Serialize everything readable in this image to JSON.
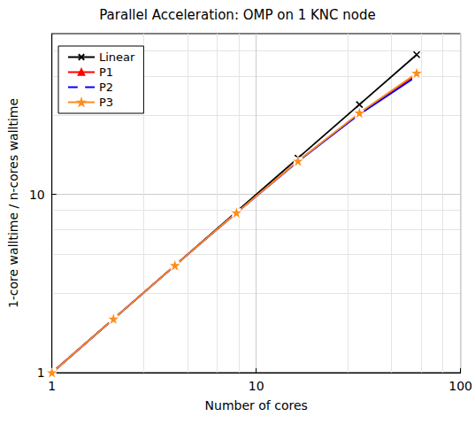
{
  "chart_data": {
    "type": "line",
    "title": "Parallel Acceleration: OMP on 1 KNC node",
    "x_label": "Number of cores",
    "y_label": "1-core walltime / n-cores walltime",
    "x": [
      1,
      2,
      4,
      8,
      16,
      32,
      61
    ],
    "series": [
      {
        "name": "Linear",
        "color": "#000000",
        "marker": "x",
        "values": [
          1,
          2,
          4,
          8,
          16,
          32,
          61
        ]
      },
      {
        "name": "P1",
        "color": "#ff0000",
        "marker": "triangle",
        "values": [
          1,
          2,
          4,
          7.9,
          15.4,
          28.5,
          47
        ]
      },
      {
        "name": "P2",
        "color": "#0000ff",
        "marker": "square",
        "values": [
          1,
          2,
          4,
          7.9,
          15.3,
          28.2,
          46
        ]
      },
      {
        "name": "P3",
        "color": "#ff8c1a",
        "marker": "star",
        "values": [
          1,
          2,
          4,
          7.9,
          15.4,
          28.7,
          48
        ]
      }
    ],
    "xlim": [
      1,
      100
    ],
    "xticks": [
      1,
      10,
      100
    ],
    "ylim": [
      1,
      80
    ],
    "yticks": [
      1,
      10
    ],
    "log": true,
    "grid": true,
    "legend": "top-left"
  }
}
